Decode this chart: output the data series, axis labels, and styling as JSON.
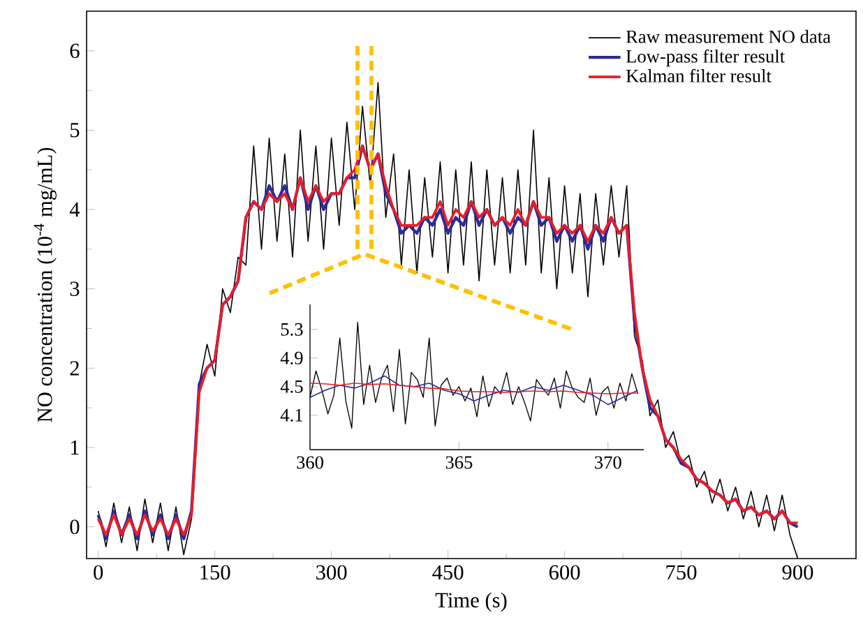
{
  "chart_data": [
    {
      "type": "line",
      "xlabel": "Time (s)",
      "ylabel": "NO concentration (10$^{-4}$ mg/mL)",
      "legend": "top right",
      "marker": "none",
      "line_style": "solid",
      "xlim": [
        -15,
        975
      ],
      "ylim": [
        -0.4,
        6.5
      ],
      "xticks": [
        0,
        150,
        300,
        450,
        600,
        750,
        900
      ],
      "yticks": [
        0,
        1,
        2,
        3,
        4,
        5,
        6
      ],
      "x": [
        0,
        10,
        20,
        30,
        40,
        50,
        60,
        70,
        80,
        90,
        100,
        110,
        120,
        130,
        140,
        150,
        160,
        170,
        180,
        190,
        200,
        210,
        220,
        230,
        240,
        250,
        260,
        270,
        280,
        290,
        300,
        310,
        320,
        330,
        340,
        350,
        360,
        370,
        380,
        390,
        400,
        410,
        420,
        430,
        440,
        450,
        460,
        470,
        480,
        490,
        500,
        510,
        520,
        530,
        540,
        550,
        560,
        570,
        580,
        590,
        600,
        610,
        620,
        630,
        640,
        650,
        660,
        670,
        680,
        690,
        700,
        710,
        720,
        730,
        740,
        750,
        760,
        770,
        780,
        790,
        800,
        810,
        820,
        830,
        840,
        850,
        860,
        870,
        880,
        890,
        900
      ],
      "series": [
        {
          "name": "Raw measurement NO data",
          "color": "#000000",
          "values": [
            0.2,
            -0.25,
            0.3,
            -0.2,
            0.25,
            -0.3,
            0.35,
            -0.2,
            0.3,
            -0.3,
            0.25,
            -0.35,
            0.1,
            1.8,
            2.3,
            1.9,
            3.0,
            2.7,
            3.4,
            3.3,
            4.8,
            3.5,
            4.9,
            3.6,
            4.7,
            3.4,
            5.0,
            3.6,
            4.8,
            3.5,
            4.9,
            3.8,
            5.1,
            4.0,
            5.3,
            4.3,
            5.6,
            3.9,
            4.7,
            3.3,
            4.5,
            3.2,
            4.4,
            3.4,
            4.6,
            3.2,
            4.5,
            3.3,
            4.6,
            3.1,
            4.5,
            3.3,
            4.4,
            3.2,
            4.5,
            3.3,
            5.0,
            3.2,
            4.4,
            3.0,
            4.3,
            3.2,
            4.2,
            2.9,
            4.2,
            3.3,
            4.3,
            3.4,
            4.3,
            2.4,
            2.1,
            1.4,
            1.6,
            1.0,
            1.2,
            0.8,
            0.9,
            0.5,
            0.7,
            0.3,
            0.6,
            0.2,
            0.5,
            0.1,
            0.45,
            0.0,
            0.4,
            -0.05,
            0.4,
            -0.1,
            -0.4
          ]
        },
        {
          "name": "Low-pass filter result",
          "color": "#2b2b9c",
          "values": [
            0.15,
            -0.15,
            0.2,
            -0.1,
            0.15,
            -0.15,
            0.2,
            -0.1,
            0.15,
            -0.15,
            0.15,
            -0.15,
            0.2,
            1.8,
            2.0,
            2.1,
            2.8,
            2.9,
            3.1,
            3.9,
            4.1,
            4.0,
            4.3,
            4.1,
            4.3,
            4.0,
            4.4,
            4.0,
            4.3,
            4.0,
            4.2,
            4.2,
            4.4,
            4.4,
            4.8,
            4.5,
            4.7,
            4.2,
            4.0,
            3.7,
            3.8,
            3.7,
            3.9,
            3.8,
            4.0,
            3.7,
            3.9,
            3.8,
            4.1,
            3.8,
            4.0,
            3.8,
            3.9,
            3.7,
            3.9,
            3.8,
            4.1,
            3.8,
            3.9,
            3.6,
            3.8,
            3.6,
            3.8,
            3.5,
            3.8,
            3.6,
            3.9,
            3.7,
            3.8,
            2.6,
            2.0,
            1.5,
            1.4,
            1.1,
            1.0,
            0.8,
            0.75,
            0.6,
            0.55,
            0.45,
            0.4,
            0.3,
            0.35,
            0.2,
            0.25,
            0.15,
            0.2,
            0.1,
            0.2,
            0.05,
            0.0
          ]
        },
        {
          "name": "Kalman filter result",
          "color": "#ee1c25",
          "values": [
            0.1,
            -0.1,
            0.15,
            -0.1,
            0.1,
            -0.1,
            0.15,
            -0.05,
            0.1,
            -0.1,
            0.1,
            -0.1,
            0.15,
            1.7,
            2.0,
            2.1,
            2.8,
            2.9,
            3.1,
            3.9,
            4.1,
            4.0,
            4.2,
            4.1,
            4.2,
            4.0,
            4.4,
            4.1,
            4.3,
            4.1,
            4.2,
            4.2,
            4.4,
            4.5,
            4.8,
            4.5,
            4.7,
            4.3,
            4.0,
            3.8,
            3.8,
            3.8,
            3.9,
            3.9,
            4.1,
            3.8,
            4.0,
            3.9,
            4.1,
            3.9,
            4.0,
            3.8,
            3.9,
            3.8,
            4.0,
            3.8,
            4.1,
            3.9,
            3.9,
            3.7,
            3.8,
            3.7,
            3.8,
            3.6,
            3.8,
            3.7,
            3.9,
            3.7,
            3.8,
            2.7,
            2.0,
            1.6,
            1.4,
            1.1,
            1.0,
            0.85,
            0.75,
            0.6,
            0.55,
            0.45,
            0.4,
            0.3,
            0.35,
            0.2,
            0.25,
            0.15,
            0.2,
            0.1,
            0.2,
            0.05,
            0.05
          ]
        }
      ]
    },
    {
      "type": "line",
      "marker": "none",
      "line_style": "solid",
      "xlim": [
        360,
        371.2
      ],
      "ylim": [
        3.62,
        5.65
      ],
      "xticks": [
        360,
        365,
        370
      ],
      "yticks": [
        4.1,
        4.5,
        4.9,
        5.3
      ],
      "series": [
        {
          "color": "#000000",
          "x": [
            360.0,
            360.2,
            360.4,
            360.6,
            360.8,
            361.0,
            361.2,
            361.4,
            361.6,
            361.8,
            362.0,
            362.2,
            362.4,
            362.6,
            362.8,
            363.0,
            363.2,
            363.4,
            363.6,
            363.8,
            364.0,
            364.2,
            364.4,
            364.6,
            364.8,
            365.0,
            365.2,
            365.4,
            365.6,
            365.8,
            366.0,
            366.2,
            366.4,
            366.6,
            366.8,
            367.0,
            367.2,
            367.4,
            367.6,
            367.8,
            368.0,
            368.2,
            368.4,
            368.6,
            368.8,
            369.0,
            369.2,
            369.4,
            369.6,
            369.8,
            370.0,
            370.2,
            370.4,
            370.6,
            370.8,
            371.0
          ],
          "values": [
            4.35,
            4.72,
            4.45,
            4.12,
            4.38,
            5.18,
            4.3,
            3.92,
            5.4,
            4.25,
            4.8,
            4.28,
            4.62,
            4.8,
            4.15,
            5.02,
            3.98,
            4.7,
            4.6,
            4.35,
            5.18,
            3.95,
            4.52,
            4.62,
            4.38,
            4.5,
            4.3,
            4.48,
            4.08,
            4.65,
            4.22,
            4.5,
            4.4,
            4.7,
            4.25,
            4.5,
            4.28,
            4.02,
            4.6,
            4.48,
            4.38,
            4.62,
            4.2,
            4.72,
            4.48,
            4.35,
            4.28,
            4.62,
            4.1,
            4.42,
            4.5,
            4.2,
            4.55,
            4.3,
            4.68,
            4.4
          ]
        },
        {
          "color": "#2b2b9c",
          "x": [
            360.0,
            360.5,
            361.0,
            361.5,
            362.0,
            362.5,
            363.0,
            363.5,
            364.0,
            364.5,
            365.0,
            365.5,
            366.0,
            366.5,
            367.0,
            367.5,
            368.0,
            368.5,
            369.0,
            369.5,
            370.0,
            370.5,
            371.0
          ],
          "values": [
            4.35,
            4.45,
            4.52,
            4.48,
            4.55,
            4.65,
            4.52,
            4.5,
            4.55,
            4.45,
            4.4,
            4.3,
            4.38,
            4.45,
            4.42,
            4.5,
            4.45,
            4.52,
            4.45,
            4.38,
            4.25,
            4.35,
            4.45
          ]
        },
        {
          "color": "#ee1c25",
          "x": [
            360.0,
            360.5,
            361.0,
            361.5,
            362.0,
            362.5,
            363.0,
            363.5,
            364.0,
            364.5,
            365.0,
            365.5,
            366.0,
            366.5,
            367.0,
            367.5,
            368.0,
            368.5,
            369.0,
            369.5,
            370.0,
            370.5,
            371.0
          ],
          "values": [
            4.55,
            4.54,
            4.52,
            4.55,
            4.53,
            4.54,
            4.52,
            4.5,
            4.48,
            4.47,
            4.44,
            4.43,
            4.43,
            4.42,
            4.43,
            4.44,
            4.43,
            4.44,
            4.42,
            4.41,
            4.4,
            4.41,
            4.41
          ]
        }
      ]
    }
  ]
}
